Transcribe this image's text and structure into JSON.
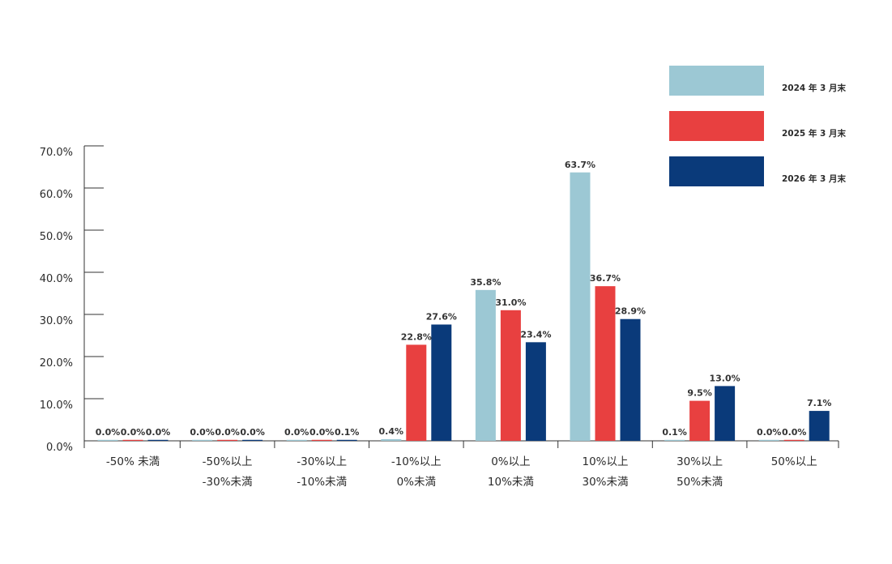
{
  "chart_data": {
    "type": "bar",
    "categories": [
      [
        "-50% 未満"
      ],
      [
        "-50%以上",
        "-30%未満"
      ],
      [
        "-30%以上",
        "-10%未満"
      ],
      [
        "-10%以上",
        "0%未満"
      ],
      [
        "0%以上",
        "10%未満"
      ],
      [
        "10%以上",
        "30%未満"
      ],
      [
        "30%以上",
        "50%未満"
      ],
      [
        "50%以上"
      ]
    ],
    "series": [
      {
        "name": "2024 年 3 月末",
        "color": "#9cc8d4",
        "values": [
          0.0,
          0.0,
          0.0,
          0.4,
          35.8,
          63.7,
          0.1,
          0.0
        ],
        "labels": [
          "0.0%",
          "0.0%",
          "0.0%",
          "0.4%",
          "35.8%",
          "63.7%",
          "0.1%",
          "0.0%"
        ]
      },
      {
        "name": "2025 年 3 月末",
        "color": "#e84040",
        "values": [
          0.0,
          0.0,
          0.0,
          22.8,
          31.0,
          36.7,
          9.5,
          0.0
        ],
        "labels": [
          "0.0%",
          "0.0%",
          "0.0%",
          "22.8%",
          "31.0%",
          "36.7%",
          "9.5%",
          "0.0%"
        ]
      },
      {
        "name": "2026 年 3 月末",
        "color": "#0a3a7a",
        "values": [
          0.0,
          0.0,
          0.1,
          27.6,
          23.4,
          28.9,
          13.0,
          7.1
        ],
        "labels": [
          "0.0%",
          "0.0%",
          "0.1%",
          "27.6%",
          "23.4%",
          "28.9%",
          "13.0%",
          "7.1%"
        ]
      }
    ],
    "ylim": [
      0,
      70
    ],
    "yticks": [
      "0.0%",
      "10.0%",
      "20.0%",
      "30.0%",
      "40.0%",
      "50.0%",
      "60.0%",
      "70.0%"
    ],
    "ytick_values": [
      0,
      10,
      20,
      30,
      40,
      50,
      60,
      70
    ],
    "title": "",
    "xlabel": "",
    "ylabel": "",
    "legend_position": "top-right",
    "grid": false
  }
}
